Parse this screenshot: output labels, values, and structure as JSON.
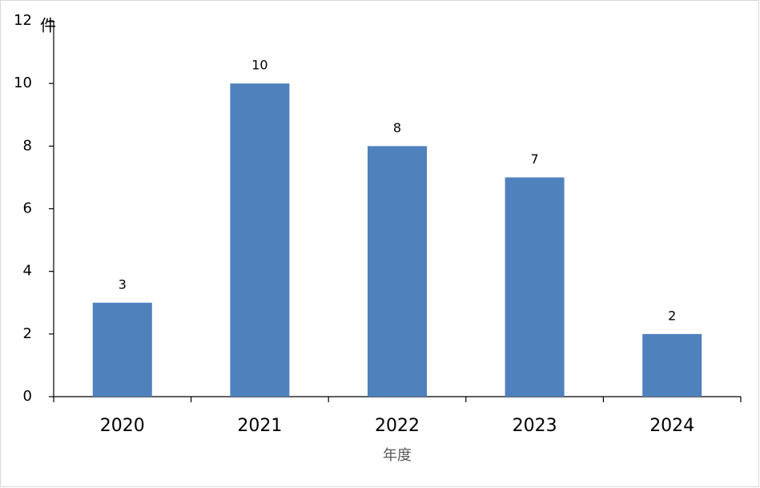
{
  "chart_data": {
    "type": "bar",
    "y_unit": "件",
    "x_label": "年度",
    "categories": [
      "2020",
      "2021",
      "2022",
      "2023",
      "2024"
    ],
    "values": [
      3,
      10,
      8,
      7,
      2
    ],
    "color": "#4f81bd",
    "ylim": [
      0,
      12
    ],
    "yticks": [
      0,
      2,
      4,
      6,
      8,
      10,
      12
    ],
    "grid": false
  }
}
